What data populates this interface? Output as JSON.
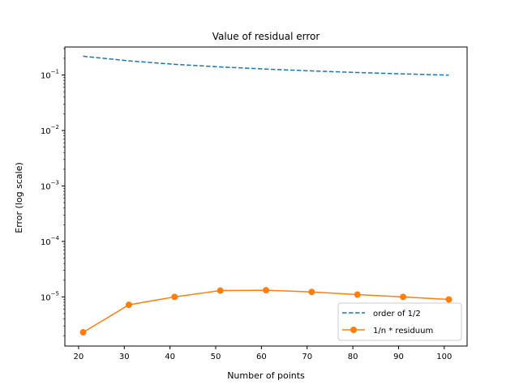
{
  "chart_data": {
    "type": "line",
    "title": "Value of residual error",
    "xlabel": "Number of points",
    "ylabel": "Error (log scale)",
    "yscale": "log",
    "x": [
      21,
      31,
      41,
      51,
      61,
      71,
      81,
      91,
      101
    ],
    "xticks": [
      20,
      30,
      40,
      50,
      60,
      70,
      80,
      90,
      100
    ],
    "xlim": [
      17,
      105
    ],
    "ylim": [
      1.3e-06,
      0.32
    ],
    "yticks": [
      {
        "base": "10",
        "exp": "−5",
        "value": 1e-05
      },
      {
        "base": "10",
        "exp": "−4",
        "value": 0.0001
      },
      {
        "base": "10",
        "exp": "−3",
        "value": 0.001
      },
      {
        "base": "10",
        "exp": "−2",
        "value": 0.01
      },
      {
        "base": "10",
        "exp": "−1",
        "value": 0.1
      }
    ],
    "grid": false,
    "legend_position": "lower-right",
    "series": [
      {
        "name": "order of 1/2",
        "color": "#1f77b4",
        "style": "dashed",
        "marker": "none",
        "values": [
          0.218,
          0.18,
          0.156,
          0.14,
          0.128,
          0.1185,
          0.111,
          0.1048,
          0.0995
        ]
      },
      {
        "name": "1/n * residuum",
        "color": "#ff7f0e",
        "style": "solid",
        "marker": "circle",
        "values": [
          2.3e-06,
          7.2e-06,
          1e-05,
          1.3e-05,
          1.32e-05,
          1.23e-05,
          1.1e-05,
          1e-05,
          9e-06
        ]
      }
    ]
  }
}
